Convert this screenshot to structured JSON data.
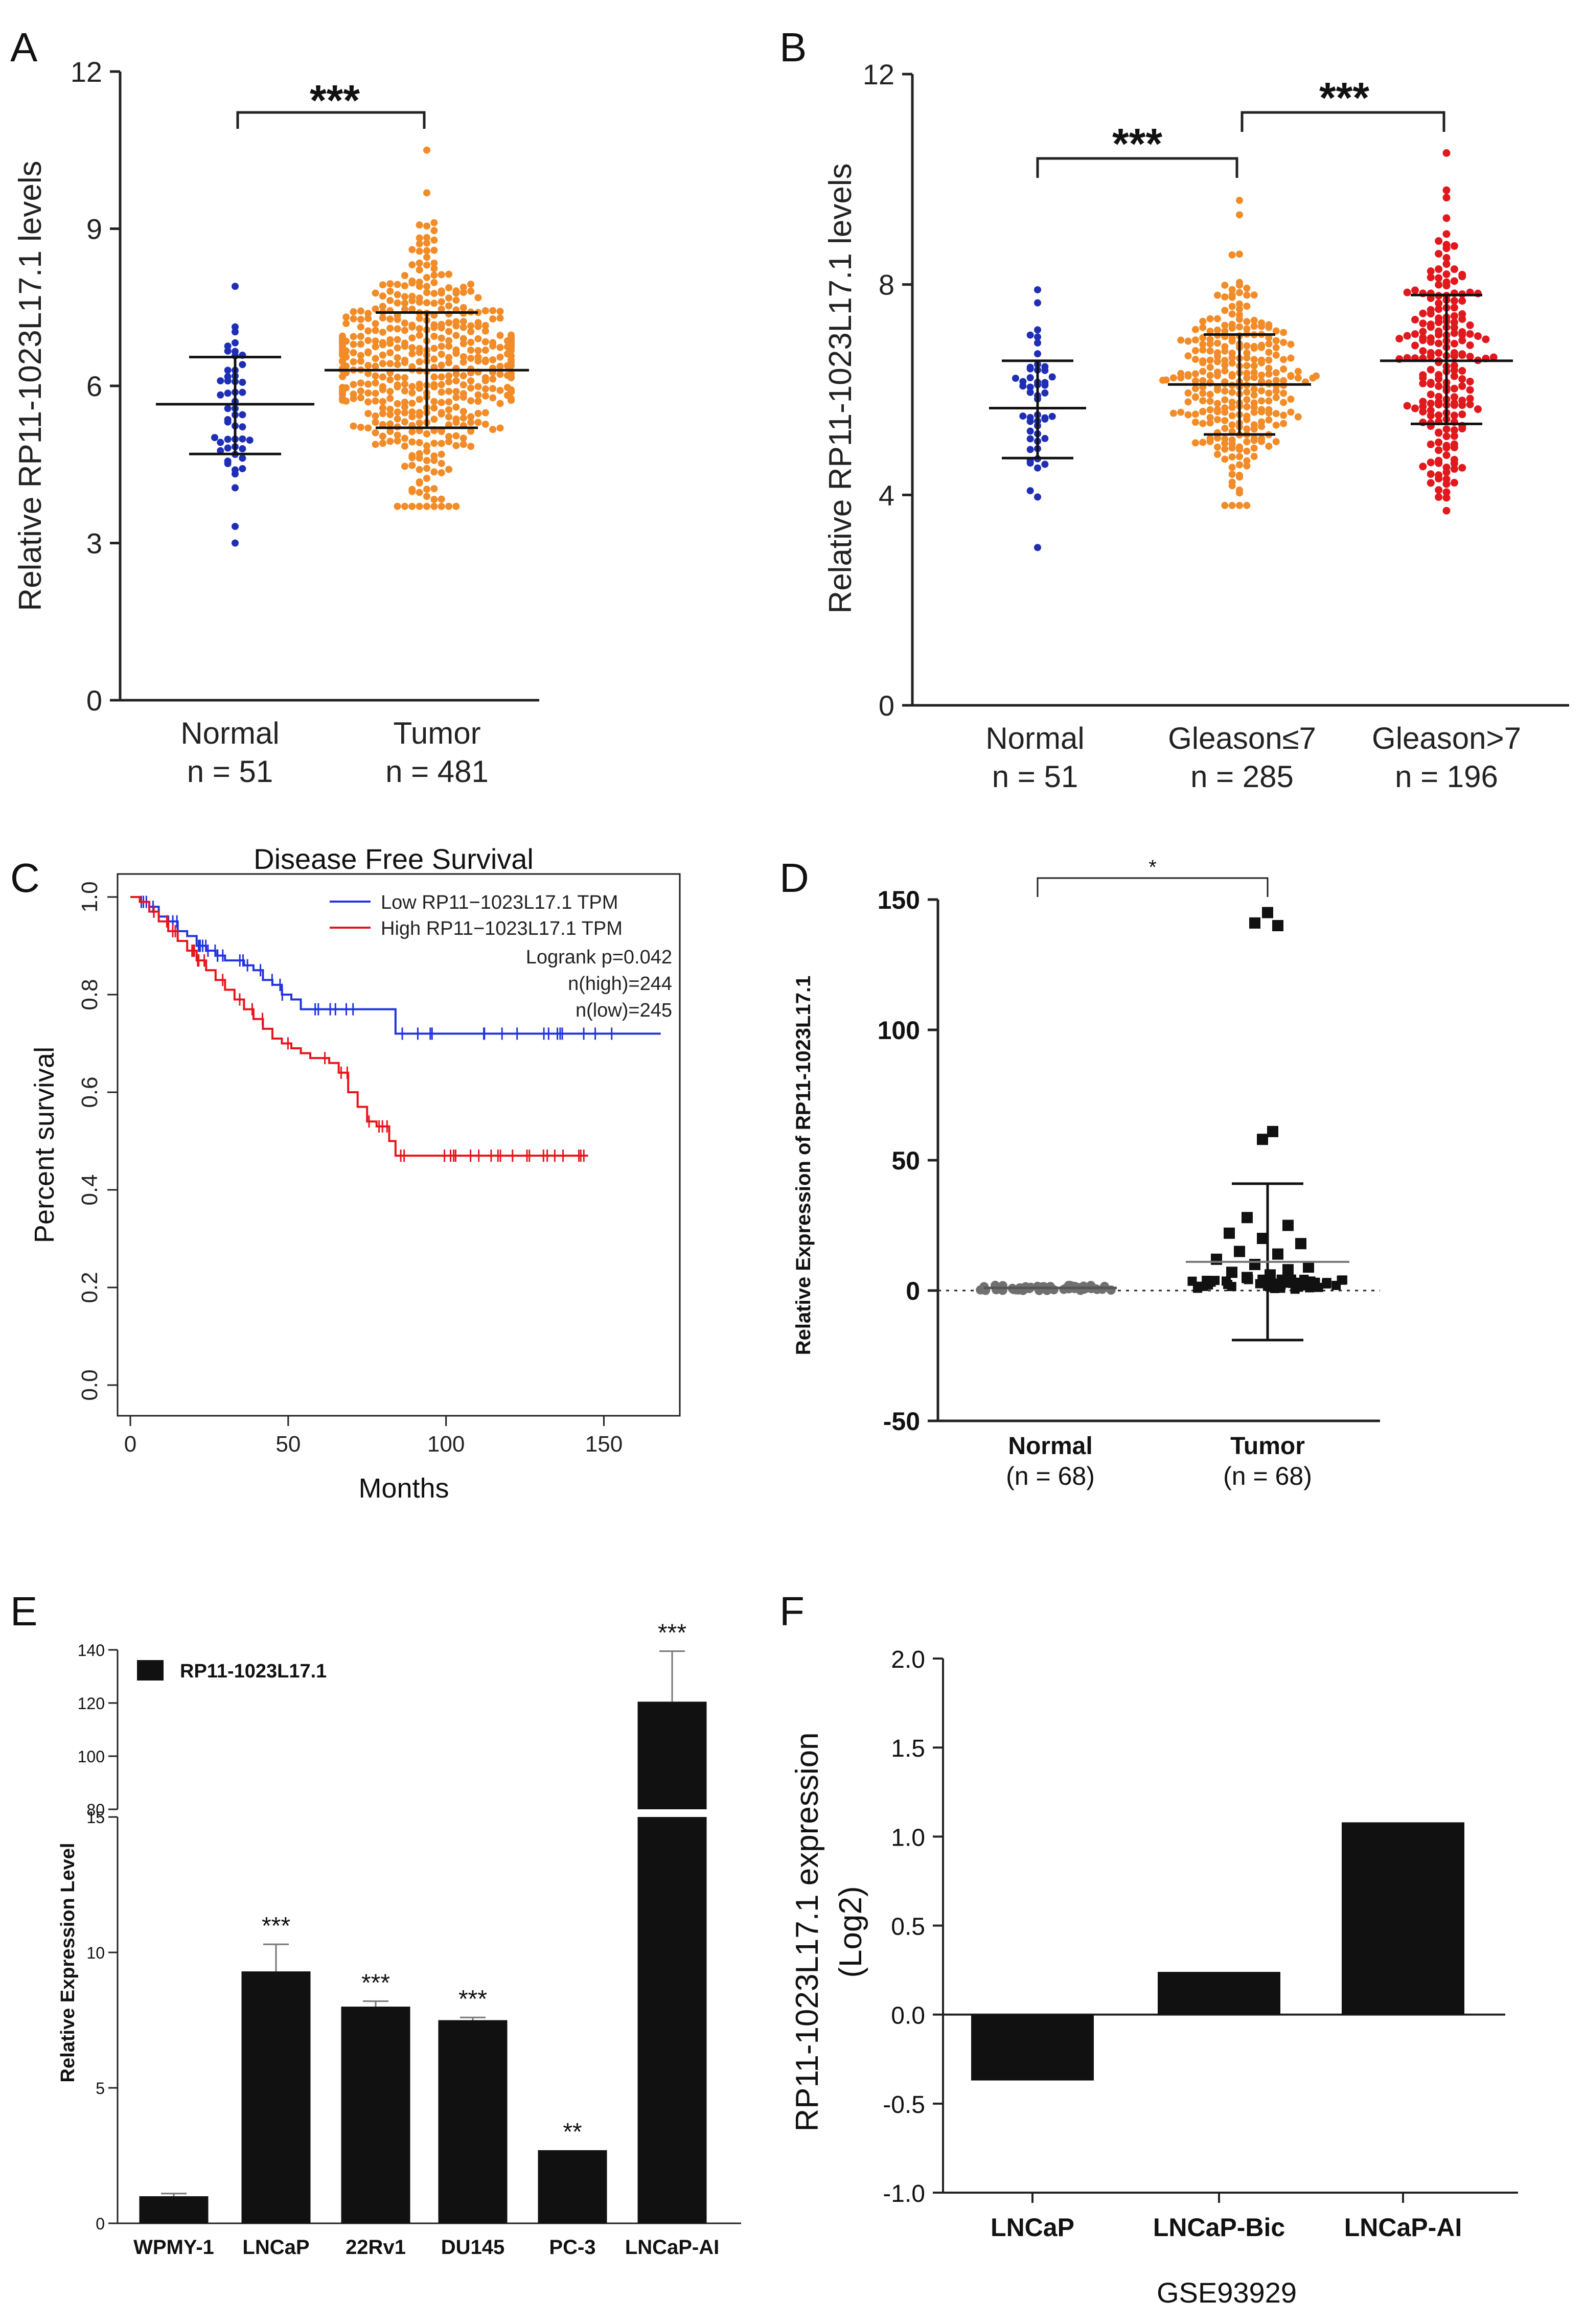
{
  "chart_data": [
    {
      "panel": "A",
      "type": "scatter",
      "ylabel": "Relative RP11-1023L17.1 levels",
      "ylim": [
        0,
        12
      ],
      "yticks": [
        "0",
        "3",
        "6",
        "9",
        "12"
      ],
      "groups": [
        {
          "name": "Normal",
          "n_label": "n = 51",
          "n": 51,
          "color": "#1f2fb4",
          "mean": 5.65,
          "sd_low": 4.7,
          "sd_high": 6.55,
          "min": 3.0,
          "max": 7.9
        },
        {
          "name": "Tumor",
          "n_label": "n = 481",
          "n": 481,
          "color": "#f28c28",
          "mean": 6.3,
          "sd_low": 5.2,
          "sd_high": 7.4,
          "min": 3.7,
          "max": 10.5
        }
      ],
      "comparisons": [
        {
          "from": "Normal",
          "to": "Tumor",
          "label": "***"
        }
      ]
    },
    {
      "panel": "B",
      "type": "scatter",
      "ylabel": "Relative RP11-1023L17.1 levels",
      "ylim": [
        0,
        12
      ],
      "yticks": [
        "0",
        "4",
        "8",
        "12"
      ],
      "groups": [
        {
          "name": "Normal",
          "n_label": "n = 51",
          "n": 51,
          "color": "#1f2fb4",
          "mean": 5.65,
          "sd_low": 4.7,
          "sd_high": 6.55,
          "min": 3.0,
          "max": 7.9
        },
        {
          "name": "Gleason≤7",
          "n_label": "n = 285",
          "n": 285,
          "color": "#f28c28",
          "mean": 6.1,
          "sd_low": 5.15,
          "sd_high": 7.05,
          "min": 3.8,
          "max": 9.6
        },
        {
          "name": "Gleason>7",
          "n_label": "n = 196",
          "n": 196,
          "color": "#e0191e",
          "mean": 6.55,
          "sd_low": 5.35,
          "sd_high": 7.8,
          "min": 3.7,
          "max": 10.5
        }
      ],
      "comparisons": [
        {
          "from": "Normal",
          "to": "Gleason≤7",
          "label": "***"
        },
        {
          "from": "Gleason≤7",
          "to": "Gleason>7",
          "label": "***"
        }
      ]
    },
    {
      "panel": "C",
      "type": "line",
      "title": "Disease Free Survival",
      "xlabel": "Months",
      "ylabel": "Percent survival",
      "xlim": [
        0,
        170
      ],
      "ylim": [
        0,
        1.0
      ],
      "xticks": [
        "0",
        "50",
        "100",
        "150"
      ],
      "yticks": [
        "0.0",
        "0.2",
        "0.4",
        "0.6",
        "0.8",
        "1.0"
      ],
      "series": [
        {
          "name": "Low RP11−1023L17.1 TPM",
          "color": "#2233dd",
          "x": [
            0,
            3,
            6,
            9,
            12,
            15,
            18,
            21,
            24,
            27,
            30,
            33,
            36,
            39,
            42,
            45,
            48,
            51,
            54,
            57,
            60,
            66,
            72,
            78,
            83,
            84,
            90,
            110,
            130,
            150,
            168
          ],
          "y": [
            1.0,
            0.99,
            0.98,
            0.96,
            0.95,
            0.93,
            0.92,
            0.9,
            0.89,
            0.88,
            0.87,
            0.87,
            0.86,
            0.85,
            0.83,
            0.82,
            0.8,
            0.79,
            0.77,
            0.77,
            0.77,
            0.77,
            0.77,
            0.77,
            0.77,
            0.72,
            0.72,
            0.72,
            0.72,
            0.72,
            0.72
          ]
        },
        {
          "name": "High RP11−1023L17.1 TPM",
          "color": "#e8141b",
          "x": [
            0,
            3,
            6,
            9,
            12,
            15,
            18,
            21,
            24,
            27,
            30,
            33,
            36,
            39,
            42,
            45,
            48,
            51,
            54,
            57,
            60,
            63,
            66,
            69,
            72,
            75,
            78,
            81,
            82,
            84,
            90,
            110,
            130,
            145
          ],
          "y": [
            1.0,
            0.99,
            0.97,
            0.95,
            0.93,
            0.91,
            0.89,
            0.87,
            0.85,
            0.83,
            0.81,
            0.79,
            0.77,
            0.75,
            0.73,
            0.71,
            0.7,
            0.69,
            0.68,
            0.67,
            0.67,
            0.66,
            0.64,
            0.6,
            0.57,
            0.54,
            0.53,
            0.53,
            0.5,
            0.47,
            0.47,
            0.47,
            0.47,
            0.47
          ]
        }
      ],
      "stats": [
        "Logrank p=0.042",
        "n(high)=244",
        "n(low)=245"
      ]
    },
    {
      "panel": "D",
      "type": "scatter",
      "ylabel": "Relative Expression of RP11-1023L17.1",
      "ylim": [
        -50,
        150
      ],
      "yticks": [
        "-50",
        "0",
        "50",
        "100",
        "150"
      ],
      "groups": [
        {
          "name": "Normal",
          "n_label": "(n = 68)",
          "mean": 1.0,
          "sd_low": 0.5,
          "sd_high": 1.5,
          "color": "#666666"
        },
        {
          "name": "Tumor",
          "n_label": "(n = 68)",
          "mean": 11.0,
          "sd_low": -19.0,
          "sd_high": 41.0,
          "color": "#111111",
          "high_points": [
            145,
            141,
            140,
            61,
            58,
            28,
            25,
            22,
            20,
            18,
            15,
            14,
            12,
            10,
            9,
            8,
            7,
            6,
            5,
            4
          ]
        }
      ],
      "comparisons": [
        {
          "from": "Normal",
          "to": "Tumor",
          "label": "*"
        }
      ]
    },
    {
      "panel": "E",
      "type": "bar",
      "legend": "RP11-1023L17.1",
      "ylabel": "Relative Expression Level",
      "categories": [
        "WPMY-1",
        "LNCaP",
        "22Rv1",
        "DU145",
        "PC-3",
        "LNCaP-AI"
      ],
      "values": [
        1.0,
        9.3,
        8.0,
        7.5,
        2.7,
        120.5
      ],
      "errors": [
        0.1,
        1.0,
        0.2,
        0.1,
        0.0,
        19.0
      ],
      "significance": [
        "",
        "***",
        "***",
        "***",
        "**",
        "***"
      ],
      "axis_break": [
        15,
        80
      ],
      "ylower_ticks": [
        "0",
        "5",
        "10",
        "15"
      ],
      "yupper_ticks": [
        "80",
        "100",
        "120",
        "140"
      ]
    },
    {
      "panel": "F",
      "type": "bar",
      "ylabel": "RP11-1023L17.1 expression",
      "ylabel2": "(Log2)",
      "xlabel": "GSE93929",
      "categories": [
        "LNCaP",
        "LNCaP-Bic",
        "LNCaP-AI"
      ],
      "values": [
        -0.37,
        0.24,
        1.08
      ],
      "ylim": [
        -1.0,
        2.0
      ],
      "yticks": [
        "-1.0",
        "-0.5",
        "0.0",
        "0.5",
        "1.0",
        "1.5",
        "2.0"
      ]
    }
  ],
  "panel_letters": [
    "A",
    "B",
    "C",
    "D",
    "E",
    "F"
  ]
}
